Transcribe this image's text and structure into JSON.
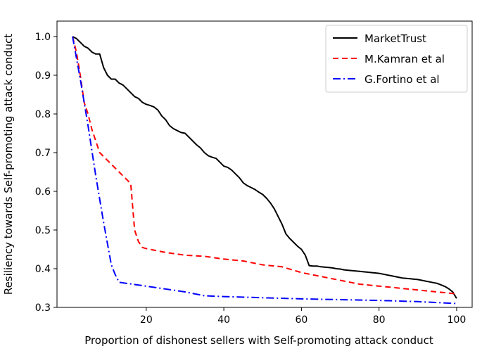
{
  "chart_data": {
    "type": "line",
    "title": "",
    "xlabel": "Proportion of dishonest sellers with Self-promoting attack conduct",
    "ylabel": "Resiliency towards Self-promoting attack conduct",
    "xlim": [
      -3,
      104
    ],
    "ylim": [
      0.3,
      1.04
    ],
    "xticks": [
      20,
      40,
      60,
      80,
      100
    ],
    "yticks": [
      0.3,
      0.4,
      0.5,
      0.6,
      0.7,
      0.8,
      0.9,
      1.0
    ],
    "grid": false,
    "legend_position": "top-right",
    "series": [
      {
        "name": "MarketTrust",
        "color": "#000000",
        "dash": "solid",
        "x": [
          1,
          2,
          3,
          4,
          5,
          6,
          7,
          8,
          9,
          10,
          11,
          12,
          13,
          14,
          15,
          16,
          17,
          18,
          19,
          20,
          21,
          22,
          23,
          24,
          25,
          26,
          27,
          28,
          29,
          30,
          31,
          32,
          33,
          34,
          35,
          36,
          37,
          38,
          39,
          40,
          41,
          42,
          43,
          44,
          45,
          46,
          47,
          48,
          49,
          50,
          51,
          52,
          53,
          54,
          55,
          56,
          57,
          58,
          59,
          60,
          61,
          62,
          63,
          64,
          65,
          66,
          67,
          68,
          69,
          70,
          71,
          72,
          73,
          74,
          75,
          76,
          77,
          78,
          79,
          80,
          81,
          82,
          83,
          84,
          85,
          86,
          87,
          88,
          89,
          90,
          91,
          92,
          93,
          94,
          95,
          96,
          97,
          98,
          99,
          100
        ],
        "values": [
          1.0,
          0.995,
          0.985,
          0.975,
          0.97,
          0.96,
          0.955,
          0.955,
          0.92,
          0.9,
          0.89,
          0.89,
          0.88,
          0.875,
          0.865,
          0.855,
          0.845,
          0.84,
          0.83,
          0.825,
          0.822,
          0.818,
          0.81,
          0.795,
          0.785,
          0.77,
          0.762,
          0.757,
          0.752,
          0.75,
          0.74,
          0.73,
          0.72,
          0.712,
          0.7,
          0.692,
          0.688,
          0.685,
          0.675,
          0.665,
          0.662,
          0.655,
          0.645,
          0.635,
          0.622,
          0.615,
          0.61,
          0.605,
          0.598,
          0.592,
          0.582,
          0.57,
          0.555,
          0.535,
          0.515,
          0.49,
          0.478,
          0.468,
          0.458,
          0.45,
          0.435,
          0.408,
          0.407,
          0.407,
          0.405,
          0.404,
          0.403,
          0.402,
          0.4,
          0.399,
          0.397,
          0.396,
          0.395,
          0.394,
          0.393,
          0.392,
          0.391,
          0.39,
          0.389,
          0.388,
          0.386,
          0.384,
          0.382,
          0.38,
          0.378,
          0.376,
          0.375,
          0.374,
          0.373,
          0.372,
          0.37,
          0.368,
          0.366,
          0.364,
          0.362,
          0.358,
          0.354,
          0.348,
          0.34,
          0.323
        ]
      },
      {
        "name": "M.Kamran et al",
        "color": "#ff0000",
        "dash": "dashed",
        "x": [
          1,
          2,
          3,
          4,
          5,
          6,
          7,
          8,
          9,
          10,
          11,
          12,
          13,
          14,
          15,
          16,
          17,
          18,
          19,
          20,
          25,
          30,
          35,
          40,
          45,
          50,
          55,
          60,
          65,
          70,
          75,
          80,
          85,
          90,
          95,
          100
        ],
        "values": [
          1.0,
          0.96,
          0.9,
          0.83,
          0.8,
          0.76,
          0.73,
          0.7,
          0.69,
          0.68,
          0.67,
          0.66,
          0.65,
          0.64,
          0.63,
          0.62,
          0.5,
          0.47,
          0.455,
          0.452,
          0.442,
          0.435,
          0.432,
          0.425,
          0.42,
          0.41,
          0.405,
          0.39,
          0.38,
          0.37,
          0.36,
          0.355,
          0.35,
          0.345,
          0.34,
          0.335
        ]
      },
      {
        "name": "G.Fortino et al",
        "color": "#0000ff",
        "dash": "dashdot",
        "x": [
          1,
          3,
          5,
          7,
          9,
          11,
          12,
          13,
          20,
          30,
          35,
          40,
          50,
          60,
          70,
          80,
          90,
          100
        ],
        "values": [
          1.0,
          0.89,
          0.77,
          0.64,
          0.52,
          0.41,
          0.385,
          0.365,
          0.355,
          0.34,
          0.33,
          0.328,
          0.325,
          0.322,
          0.32,
          0.318,
          0.315,
          0.31
        ]
      }
    ]
  }
}
